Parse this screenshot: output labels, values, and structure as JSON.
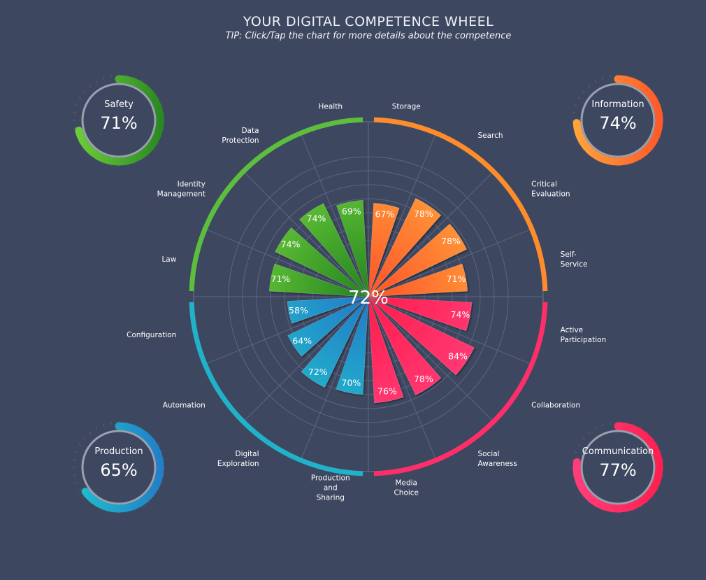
{
  "header": {
    "title": "YOUR DIGITAL COMPETENCE WHEEL",
    "tip": "TIP: Click/Tap the chart for more details about the competence"
  },
  "chart_data": {
    "type": "polar-bar",
    "center_value": "72%",
    "rlim": [
      0,
      100
    ],
    "areas": [
      {
        "name": "Information",
        "value": "74%",
        "percent": 74,
        "color": "#ff8c2a",
        "gradient": [
          "#ffa33a",
          "#ff5a2a"
        ]
      },
      {
        "name": "Communication",
        "value": "77%",
        "percent": 77,
        "color": "#ff2e6a",
        "gradient": [
          "#ff3d7a",
          "#ff2050"
        ]
      },
      {
        "name": "Production",
        "value": "65%",
        "percent": 65,
        "color": "#1fb2c8",
        "gradient": [
          "#1fbecc",
          "#2180c8"
        ]
      },
      {
        "name": "Safety",
        "value": "71%",
        "percent": 71,
        "color": "#5cbe3c",
        "gradient": [
          "#6ccc3a",
          "#2a8a22"
        ]
      }
    ],
    "competences": [
      {
        "name": "Storage",
        "lines": [
          "Storage"
        ],
        "value": 67,
        "label": "67%",
        "area": "Information"
      },
      {
        "name": "Search",
        "lines": [
          "Search"
        ],
        "value": 78,
        "label": "78%",
        "area": "Information"
      },
      {
        "name": "Critical Evaluation",
        "lines": [
          "Critical",
          "Evaluation"
        ],
        "value": 78,
        "label": "78%",
        "area": "Information"
      },
      {
        "name": "Self-Service",
        "lines": [
          "Self-",
          "Service"
        ],
        "value": 71,
        "label": "71%",
        "area": "Information"
      },
      {
        "name": "Active Participation",
        "lines": [
          "Active",
          "Participation"
        ],
        "value": 74,
        "label": "74%",
        "area": "Communication"
      },
      {
        "name": "Collaboration",
        "lines": [
          "Collaboration"
        ],
        "value": 84,
        "label": "84%",
        "area": "Communication"
      },
      {
        "name": "Social Awareness",
        "lines": [
          "Social",
          "Awareness"
        ],
        "value": 78,
        "label": "78%",
        "area": "Communication"
      },
      {
        "name": "Media Choice",
        "lines": [
          "Media",
          "Choice"
        ],
        "value": 76,
        "label": "76%",
        "area": "Communication"
      },
      {
        "name": "Production and Sharing",
        "lines": [
          "Production",
          "and",
          "Sharing"
        ],
        "value": 70,
        "label": "70%",
        "area": "Production"
      },
      {
        "name": "Digital Exploration",
        "lines": [
          "Digital",
          "Exploration"
        ],
        "value": 72,
        "label": "72%",
        "area": "Production"
      },
      {
        "name": "Automation",
        "lines": [
          "Automation"
        ],
        "value": 64,
        "label": "64%",
        "area": "Production"
      },
      {
        "name": "Configuration",
        "lines": [
          "Configuration"
        ],
        "value": 58,
        "label": "58%",
        "area": "Production"
      },
      {
        "name": "Law",
        "lines": [
          "Law"
        ],
        "value": 71,
        "label": "71%",
        "area": "Safety"
      },
      {
        "name": "Identity Management",
        "lines": [
          "Identity",
          "Management"
        ],
        "value": 74,
        "label": "74%",
        "area": "Safety"
      },
      {
        "name": "Data Protection",
        "lines": [
          "Data",
          "Protection"
        ],
        "value": 74,
        "label": "74%",
        "area": "Safety"
      },
      {
        "name": "Health",
        "lines": [
          "Health"
        ],
        "value": 69,
        "label": "69%",
        "area": "Safety"
      }
    ]
  }
}
